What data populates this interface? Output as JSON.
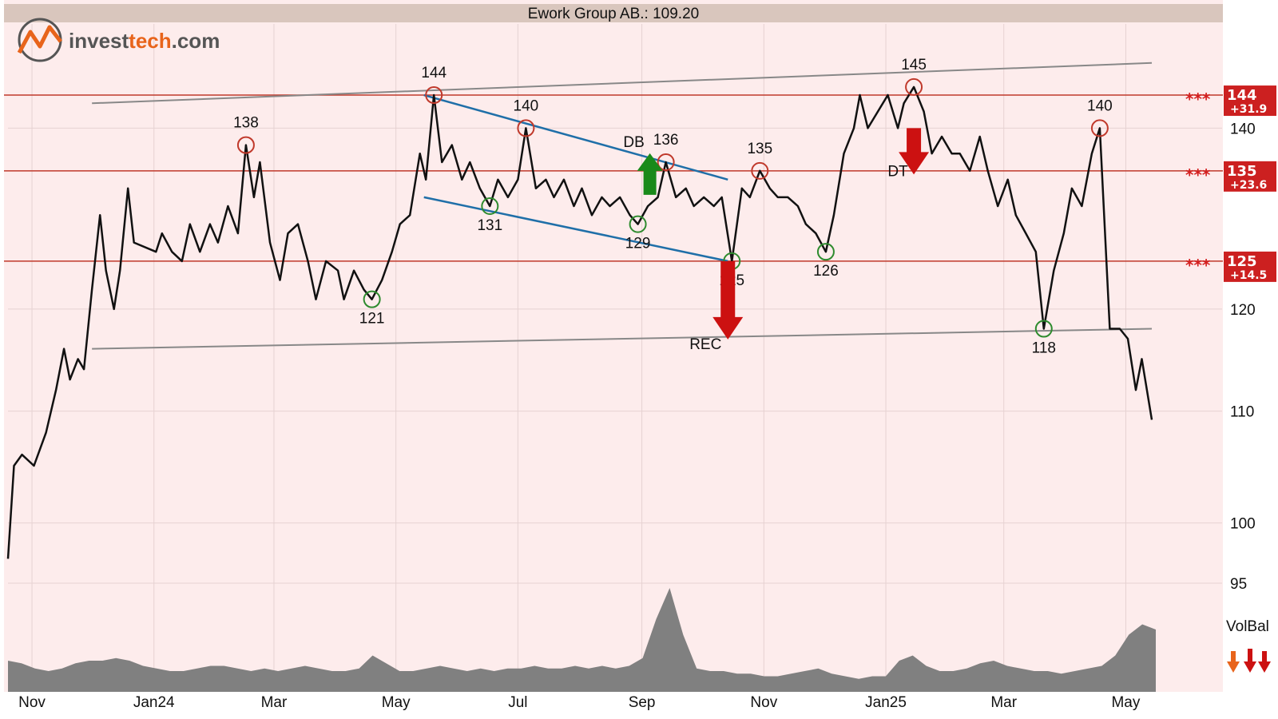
{
  "title": "Ework Group AB.: 109.20",
  "logo": {
    "text_dark": "invest",
    "text_accent": "tech",
    "text_tail": ".com",
    "colors": [
      "#555555",
      "#e8641b"
    ]
  },
  "colors": {
    "background": "#fdecec",
    "title_bar": "#d9c6bd",
    "resistance": "#c0392b",
    "support_circle": "#2e8b2e",
    "channel": "#888888",
    "wedge": "#1f6fa8",
    "price": "#111111",
    "volume": "#808080",
    "badge": "#cc2020"
  },
  "chart_data": {
    "type": "line",
    "title": "Ework Group AB.: 109.20",
    "y_scale": "log",
    "ylim": [
      95,
      153
    ],
    "y_ticks": [
      95,
      100,
      110,
      120,
      140
    ],
    "x_ticks": [
      {
        "label": "Nov",
        "x": "2023-11"
      },
      {
        "label": "Jan24",
        "x": "2024-01"
      },
      {
        "label": "Mar",
        "x": "2024-03"
      },
      {
        "label": "May",
        "x": "2024-05"
      },
      {
        "label": "Jul",
        "x": "2024-07"
      },
      {
        "label": "Sep",
        "x": "2024-09"
      },
      {
        "label": "Nov",
        "x": "2024-11"
      },
      {
        "label": "Jan25",
        "x": "2025-01"
      },
      {
        "label": "Mar",
        "x": "2025-03"
      },
      {
        "label": "May",
        "x": "2025-05"
      }
    ],
    "price_series": [
      {
        "x": "2023-10-20",
        "y": 97
      },
      {
        "x": "2023-10-23",
        "y": 105
      },
      {
        "x": "2023-10-27",
        "y": 106
      },
      {
        "x": "2023-11-02",
        "y": 105
      },
      {
        "x": "2023-11-08",
        "y": 108
      },
      {
        "x": "2023-11-13",
        "y": 112
      },
      {
        "x": "2023-11-17",
        "y": 116
      },
      {
        "x": "2023-11-20",
        "y": 113
      },
      {
        "x": "2023-11-24",
        "y": 115
      },
      {
        "x": "2023-11-27",
        "y": 114
      },
      {
        "x": "2023-12-01",
        "y": 122
      },
      {
        "x": "2023-12-05",
        "y": 130
      },
      {
        "x": "2023-12-08",
        "y": 124
      },
      {
        "x": "2023-12-12",
        "y": 120
      },
      {
        "x": "2023-12-15",
        "y": 124
      },
      {
        "x": "2023-12-19",
        "y": 133
      },
      {
        "x": "2023-12-22",
        "y": 127
      },
      {
        "x": "2024-01-02",
        "y": 126
      },
      {
        "x": "2024-01-05",
        "y": 128
      },
      {
        "x": "2024-01-10",
        "y": 126
      },
      {
        "x": "2024-01-15",
        "y": 125
      },
      {
        "x": "2024-01-19",
        "y": 129
      },
      {
        "x": "2024-01-24",
        "y": 126
      },
      {
        "x": "2024-01-29",
        "y": 129
      },
      {
        "x": "2024-02-02",
        "y": 127
      },
      {
        "x": "2024-02-07",
        "y": 131
      },
      {
        "x": "2024-02-12",
        "y": 128
      },
      {
        "x": "2024-02-16",
        "y": 138
      },
      {
        "x": "2024-02-20",
        "y": 132
      },
      {
        "x": "2024-02-23",
        "y": 136
      },
      {
        "x": "2024-02-28",
        "y": 127
      },
      {
        "x": "2024-03-04",
        "y": 123
      },
      {
        "x": "2024-03-08",
        "y": 128
      },
      {
        "x": "2024-03-13",
        "y": 129
      },
      {
        "x": "2024-03-18",
        "y": 125
      },
      {
        "x": "2024-03-22",
        "y": 121
      },
      {
        "x": "2024-03-27",
        "y": 125
      },
      {
        "x": "2024-04-02",
        "y": 124
      },
      {
        "x": "2024-04-05",
        "y": 121
      },
      {
        "x": "2024-04-10",
        "y": 124
      },
      {
        "x": "2024-04-15",
        "y": 122
      },
      {
        "x": "2024-04-19",
        "y": 121
      },
      {
        "x": "2024-04-24",
        "y": 123
      },
      {
        "x": "2024-04-29",
        "y": 126
      },
      {
        "x": "2024-05-03",
        "y": 129
      },
      {
        "x": "2024-05-08",
        "y": 130
      },
      {
        "x": "2024-05-13",
        "y": 137
      },
      {
        "x": "2024-05-16",
        "y": 134
      },
      {
        "x": "2024-05-20",
        "y": 144
      },
      {
        "x": "2024-05-24",
        "y": 136
      },
      {
        "x": "2024-05-29",
        "y": 138
      },
      {
        "x": "2024-06-03",
        "y": 134
      },
      {
        "x": "2024-06-07",
        "y": 136
      },
      {
        "x": "2024-06-12",
        "y": 133
      },
      {
        "x": "2024-06-17",
        "y": 131
      },
      {
        "x": "2024-06-21",
        "y": 134
      },
      {
        "x": "2024-06-26",
        "y": 132
      },
      {
        "x": "2024-07-01",
        "y": 134
      },
      {
        "x": "2024-07-05",
        "y": 140
      },
      {
        "x": "2024-07-10",
        "y": 133
      },
      {
        "x": "2024-07-15",
        "y": 134
      },
      {
        "x": "2024-07-19",
        "y": 132
      },
      {
        "x": "2024-07-24",
        "y": 134
      },
      {
        "x": "2024-07-29",
        "y": 131
      },
      {
        "x": "2024-08-02",
        "y": 133
      },
      {
        "x": "2024-08-07",
        "y": 130
      },
      {
        "x": "2024-08-12",
        "y": 132
      },
      {
        "x": "2024-08-16",
        "y": 131
      },
      {
        "x": "2024-08-21",
        "y": 132
      },
      {
        "x": "2024-08-26",
        "y": 130
      },
      {
        "x": "2024-08-30",
        "y": 129
      },
      {
        "x": "2024-09-04",
        "y": 131
      },
      {
        "x": "2024-09-09",
        "y": 132
      },
      {
        "x": "2024-09-13",
        "y": 136
      },
      {
        "x": "2024-09-18",
        "y": 132
      },
      {
        "x": "2024-09-23",
        "y": 133
      },
      {
        "x": "2024-09-27",
        "y": 131
      },
      {
        "x": "2024-10-02",
        "y": 132
      },
      {
        "x": "2024-10-07",
        "y": 131
      },
      {
        "x": "2024-10-11",
        "y": 132
      },
      {
        "x": "2024-10-16",
        "y": 125
      },
      {
        "x": "2024-10-21",
        "y": 133
      },
      {
        "x": "2024-10-25",
        "y": 132
      },
      {
        "x": "2024-10-30",
        "y": 135
      },
      {
        "x": "2024-11-04",
        "y": 133
      },
      {
        "x": "2024-11-08",
        "y": 132
      },
      {
        "x": "2024-11-13",
        "y": 132
      },
      {
        "x": "2024-11-18",
        "y": 131
      },
      {
        "x": "2024-11-22",
        "y": 129
      },
      {
        "x": "2024-11-27",
        "y": 128
      },
      {
        "x": "2024-12-02",
        "y": 126
      },
      {
        "x": "2024-12-06",
        "y": 130
      },
      {
        "x": "2024-12-11",
        "y": 137
      },
      {
        "x": "2024-12-16",
        "y": 140
      },
      {
        "x": "2024-12-19",
        "y": 144
      },
      {
        "x": "2024-12-23",
        "y": 140
      },
      {
        "x": "2025-01-02",
        "y": 144
      },
      {
        "x": "2025-01-07",
        "y": 140
      },
      {
        "x": "2025-01-10",
        "y": 143
      },
      {
        "x": "2025-01-15",
        "y": 145
      },
      {
        "x": "2025-01-20",
        "y": 142
      },
      {
        "x": "2025-01-24",
        "y": 137
      },
      {
        "x": "2025-01-29",
        "y": 139
      },
      {
        "x": "2025-02-03",
        "y": 137
      },
      {
        "x": "2025-02-07",
        "y": 137
      },
      {
        "x": "2025-02-12",
        "y": 135
      },
      {
        "x": "2025-02-17",
        "y": 139
      },
      {
        "x": "2025-02-21",
        "y": 135
      },
      {
        "x": "2025-02-26",
        "y": 131
      },
      {
        "x": "2025-03-03",
        "y": 134
      },
      {
        "x": "2025-03-07",
        "y": 130
      },
      {
        "x": "2025-03-12",
        "y": 128
      },
      {
        "x": "2025-03-17",
        "y": 126
      },
      {
        "x": "2025-03-21",
        "y": 118
      },
      {
        "x": "2025-03-26",
        "y": 124
      },
      {
        "x": "2025-03-31",
        "y": 128
      },
      {
        "x": "2025-04-04",
        "y": 133
      },
      {
        "x": "2025-04-09",
        "y": 131
      },
      {
        "x": "2025-04-14",
        "y": 137
      },
      {
        "x": "2025-04-18",
        "y": 140
      },
      {
        "x": "2025-04-23",
        "y": 118
      },
      {
        "x": "2025-04-28",
        "y": 118
      },
      {
        "x": "2025-05-02",
        "y": 117
      },
      {
        "x": "2025-05-06",
        "y": 112
      },
      {
        "x": "2025-05-09",
        "y": 115
      },
      {
        "x": "2025-05-14",
        "y": 109.2
      }
    ],
    "horizontal_lines": [
      {
        "y": 144,
        "label": "144",
        "sub": "+31.9",
        "stars": "***"
      },
      {
        "y": 135,
        "label": "135",
        "sub": "+23.6",
        "stars": "***"
      },
      {
        "y": 125,
        "label": "125",
        "sub": "+14.5",
        "stars": "***"
      }
    ],
    "channel_lines": [
      {
        "x1": "2023-12-01",
        "y1": 143,
        "x2": "2025-05-14",
        "y2": 148
      },
      {
        "x1": "2023-12-01",
        "y1": 116,
        "x2": "2025-05-14",
        "y2": 118
      }
    ],
    "wedge_lines": [
      {
        "x1": "2024-05-15",
        "y1": 144,
        "x2": "2024-10-14",
        "y2": 134
      },
      {
        "x1": "2024-05-15",
        "y1": 132,
        "x2": "2024-10-14",
        "y2": 125
      }
    ],
    "peak_labels": [
      {
        "x": "2024-02-16",
        "y": 138,
        "text": "138",
        "kind": "top"
      },
      {
        "x": "2024-05-20",
        "y": 144,
        "text": "144",
        "kind": "top"
      },
      {
        "x": "2024-07-05",
        "y": 140,
        "text": "140",
        "kind": "top"
      },
      {
        "x": "2024-09-13",
        "y": 136,
        "text": "136",
        "kind": "top"
      },
      {
        "x": "2024-10-30",
        "y": 135,
        "text": "135",
        "kind": "top"
      },
      {
        "x": "2025-01-15",
        "y": 145,
        "text": "145",
        "kind": "top"
      },
      {
        "x": "2025-04-18",
        "y": 140,
        "text": "140",
        "kind": "top"
      },
      {
        "x": "2024-04-19",
        "y": 121,
        "text": "121",
        "kind": "bottom"
      },
      {
        "x": "2024-06-17",
        "y": 131,
        "text": "131",
        "kind": "bottom"
      },
      {
        "x": "2024-08-30",
        "y": 129,
        "text": "129",
        "kind": "bottom"
      },
      {
        "x": "2024-10-16",
        "y": 125,
        "text": "125",
        "kind": "bottom"
      },
      {
        "x": "2024-12-02",
        "y": 126,
        "text": "126",
        "kind": "bottom"
      },
      {
        "x": "2025-03-21",
        "y": 118,
        "text": "118",
        "kind": "bottom"
      }
    ],
    "signals": [
      {
        "text": "DB",
        "x": "2024-09-05",
        "y": 135,
        "direction": "up",
        "color": "#1a8a1a"
      },
      {
        "text": "REC",
        "x": "2024-10-14",
        "y": 125,
        "direction": "down",
        "color": "#cc1111"
      },
      {
        "text": "DT",
        "x": "2025-01-15",
        "y": 140,
        "direction": "down",
        "color": "#cc1111"
      }
    ],
    "volume_label": "VolBal",
    "volume": [
      12,
      11,
      9,
      8,
      9,
      11,
      12,
      12,
      13,
      12,
      10,
      9,
      8,
      8,
      9,
      10,
      10,
      9,
      8,
      9,
      8,
      9,
      10,
      9,
      8,
      8,
      9,
      14,
      11,
      8,
      8,
      9,
      10,
      9,
      8,
      9,
      8,
      9,
      9,
      10,
      9,
      9,
      10,
      9,
      10,
      9,
      10,
      13,
      28,
      40,
      22,
      9,
      8,
      8,
      7,
      7,
      6,
      6,
      7,
      8,
      9,
      7,
      6,
      5,
      6,
      6,
      12,
      14,
      10,
      8,
      8,
      9,
      11,
      12,
      10,
      9,
      8,
      8,
      7,
      8,
      9,
      10,
      14,
      22,
      26,
      24
    ]
  }
}
